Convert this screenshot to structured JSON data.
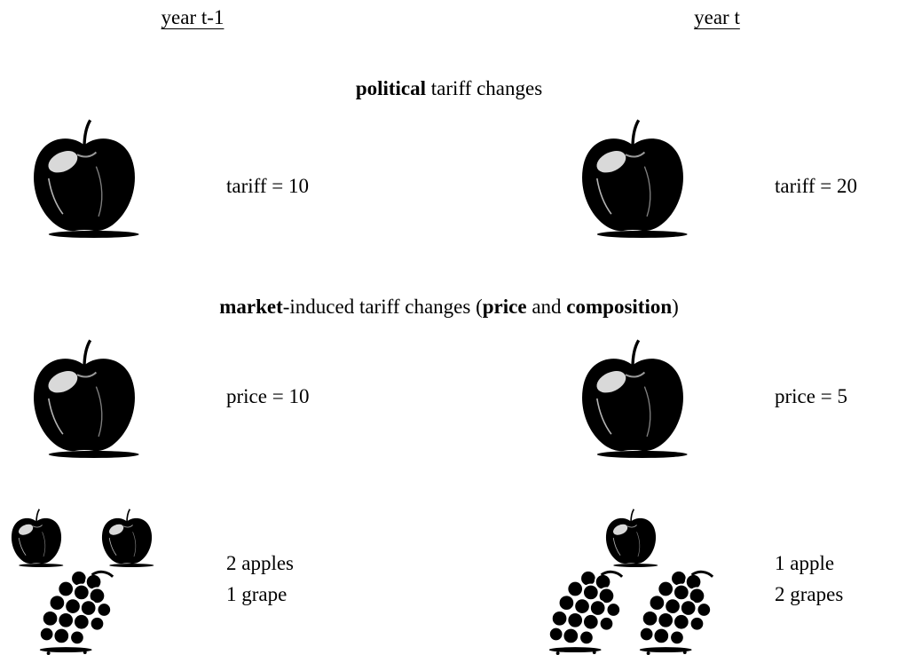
{
  "columns": {
    "left": "year t-1",
    "right": "year t"
  },
  "sections": [
    {
      "heading": [
        {
          "text": "political",
          "bold": true
        },
        {
          "text": " tariff changes",
          "bold": false
        }
      ],
      "rows": [
        {
          "left": [
            "tariff = 10"
          ],
          "right": [
            "tariff = 20"
          ]
        }
      ]
    },
    {
      "heading": [
        {
          "text": "market",
          "bold": true
        },
        {
          "text": "-induced tariff changes (",
          "bold": false
        },
        {
          "text": "price",
          "bold": true
        },
        {
          "text": " and ",
          "bold": false
        },
        {
          "text": "composition",
          "bold": true
        },
        {
          "text": ")",
          "bold": false
        }
      ],
      "rows": [
        {
          "left": [
            "price = 10"
          ],
          "right": [
            "price = 5"
          ]
        },
        {
          "left": [
            "2 apples",
            "1 grape"
          ],
          "right": [
            "1 apple",
            "2 grapes"
          ]
        }
      ]
    }
  ]
}
